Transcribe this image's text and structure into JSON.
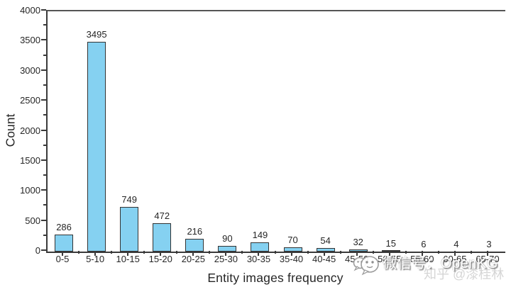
{
  "chart_data": {
    "type": "bar",
    "title": "",
    "xlabel": "Entity images frequency",
    "ylabel": "Count",
    "categories": [
      "0-5",
      "5-10",
      "10-15",
      "15-20",
      "20-25",
      "25-30",
      "30-35",
      "35-40",
      "40-45",
      "45-50",
      "50-55",
      "55-60",
      "60-65",
      "65-70"
    ],
    "values": [
      286,
      3495,
      749,
      472,
      216,
      90,
      149,
      70,
      54,
      32,
      15,
      6,
      4,
      3
    ],
    "ylim": [
      0,
      4000
    ],
    "y_major_step": 500,
    "y_minor_step": 250,
    "grid": false,
    "legend_position": "none",
    "bar_color": "#85D1F1",
    "bar_border_color": "#333333",
    "axis_color": "#3a3a3a",
    "text_color": "#262626"
  },
  "watermark": {
    "wechat_icon": "wechat-chat-bubble-icon",
    "wechat_text": "微信号：OpenKG",
    "zhihu_text": "知乎 @漆桂林"
  }
}
